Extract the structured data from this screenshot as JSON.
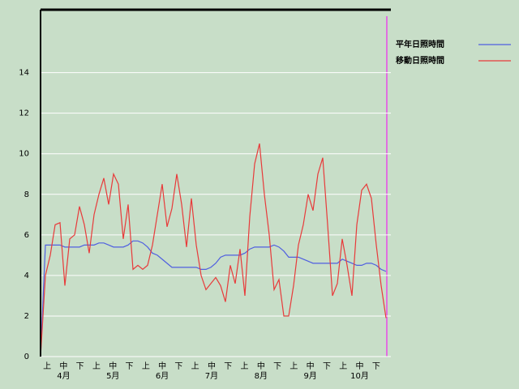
{
  "chart_data": {
    "type": "line",
    "x_labels": [
      "上",
      "中",
      "下",
      "上",
      "中",
      "下",
      "上",
      "中",
      "下",
      "上",
      "中",
      "下",
      "上",
      "中",
      "下",
      "上",
      "中",
      "下",
      "上",
      "中",
      "下"
    ],
    "months": [
      "4月",
      "5月",
      "6月",
      "7月",
      "8月",
      "9月",
      "10月"
    ],
    "ylim": [
      0,
      17.1
    ],
    "yticks": [
      0,
      2,
      4,
      6,
      8,
      10,
      12,
      14
    ],
    "grid": true,
    "legend": "right",
    "series": [
      {
        "name": "平年日照時間",
        "color": "#4f5fe0",
        "values": [
          0,
          5.5,
          5.5,
          5.5,
          5.5,
          5.4,
          5.4,
          5.4,
          5.4,
          5.5,
          5.5,
          5.5,
          5.6,
          5.6,
          5.5,
          5.4,
          5.4,
          5.4,
          5.5,
          5.7,
          5.7,
          5.6,
          5.4,
          5.1,
          5.0,
          4.8,
          4.6,
          4.4,
          4.4,
          4.4,
          4.4,
          4.4,
          4.4,
          4.3,
          4.3,
          4.4,
          4.6,
          4.9,
          5.0,
          5.0,
          5.0,
          5.0,
          5.1,
          5.3,
          5.4,
          5.4,
          5.4,
          5.4,
          5.5,
          5.4,
          5.2,
          4.9,
          4.9,
          4.9,
          4.8,
          4.7,
          4.6,
          4.6,
          4.6,
          4.6,
          4.6,
          4.6,
          4.8,
          4.7,
          4.6,
          4.5,
          4.5,
          4.6,
          4.6,
          4.5,
          4.3,
          4.2
        ]
      },
      {
        "name": "移動日照時間",
        "color": "#e83a3a",
        "values": [
          0,
          4,
          5,
          6.5,
          6.6,
          3.5,
          5.8,
          6,
          7.4,
          6.5,
          5.1,
          7,
          8,
          8.8,
          7.5,
          9,
          8.5,
          5.8,
          7.5,
          4.3,
          4.5,
          4.3,
          4.5,
          5.5,
          7,
          8.5,
          6.4,
          7.3,
          9,
          7.5,
          5.4,
          7.8,
          5.5,
          4,
          3.3,
          3.6,
          3.9,
          3.5,
          2.7,
          4.5,
          3.6,
          5.3,
          3,
          6.9,
          9.5,
          10.5,
          8,
          6,
          3.3,
          3.8,
          2,
          2,
          3.5,
          5.5,
          6.5,
          8,
          7.2,
          9,
          9.8,
          6.5,
          3,
          3.6,
          5.8,
          4.5,
          3,
          6.5,
          8.2,
          8.5,
          7.8,
          5.5,
          3.5,
          1.9
        ]
      }
    ]
  }
}
